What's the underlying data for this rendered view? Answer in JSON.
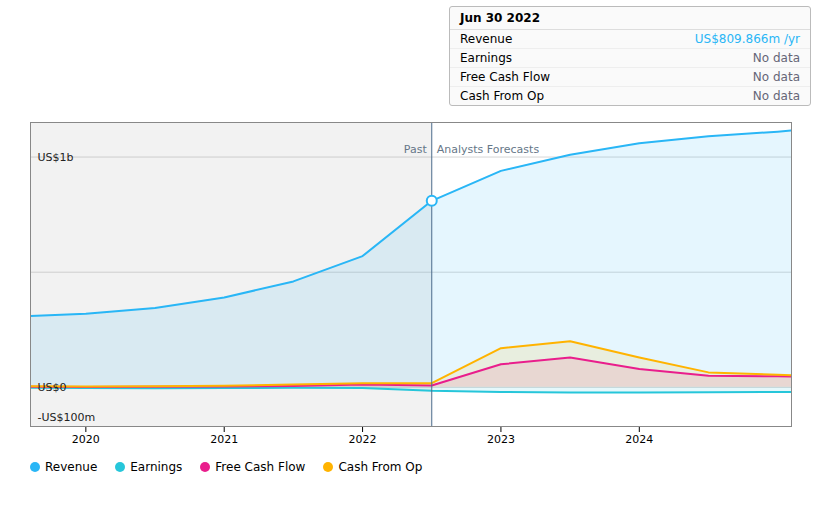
{
  "chart_data": {
    "type": "area",
    "x": [
      2019.6,
      2020.0,
      2020.5,
      2021.0,
      2021.5,
      2022.0,
      2022.5,
      2023.0,
      2023.5,
      2024.0,
      2024.5,
      2025.0,
      2025.1
    ],
    "series": [
      {
        "name": "Revenue",
        "color": "#29b6f6",
        "values": [
          310,
          320,
          345,
          390,
          460,
          570,
          810,
          940,
          1010,
          1060,
          1090,
          1110,
          1115
        ]
      },
      {
        "name": "Earnings",
        "color": "#26c6da",
        "values": [
          -2,
          -3,
          -4,
          -3,
          -2,
          -3,
          -15,
          -20,
          -22,
          -22,
          -21,
          -20,
          -20
        ]
      },
      {
        "name": "Free Cash Flow",
        "color": "#e91e8c",
        "values": [
          3,
          2,
          3,
          4,
          6,
          12,
          8,
          100,
          130,
          80,
          50,
          48,
          47
        ]
      },
      {
        "name": "Cash From Op",
        "color": "#ffb300",
        "values": [
          5,
          4,
          5,
          7,
          12,
          18,
          18,
          170,
          200,
          130,
          65,
          55,
          52
        ]
      }
    ],
    "xlim": [
      2019.6,
      2025.1
    ],
    "xticks": [
      2020,
      2021,
      2022,
      2023,
      2024
    ],
    "ylim": [
      -170,
      1150
    ],
    "yticks": [
      0,
      500,
      1000
    ],
    "grid": true,
    "tick_labels": "x",
    "legend": "bottom-left",
    "annotations": [
      {
        "text": "US$1b",
        "x": 2019.65,
        "y": 1000
      },
      {
        "text": "US$0",
        "x": 2019.65,
        "y": 0
      },
      {
        "text": "-US$100m",
        "x": 2019.65,
        "y": -130
      }
    ],
    "divider": {
      "x": 2022.5,
      "color": "#4a6a8a",
      "left_label": "Past",
      "right_label": "Analysts Forecasts",
      "label_y": 1060
    },
    "tooltip": {
      "title": "Jun 30 2022",
      "rows": [
        {
          "label": "Revenue",
          "value": "US$809.866m /yr",
          "color": "#29b6f6"
        },
        {
          "label": "Earnings",
          "value": "No data",
          "color": "#666677"
        },
        {
          "label": "Free Cash Flow",
          "value": "No data",
          "color": "#666677"
        },
        {
          "label": "Cash From Op",
          "value": "No data",
          "color": "#666677"
        }
      ]
    }
  }
}
